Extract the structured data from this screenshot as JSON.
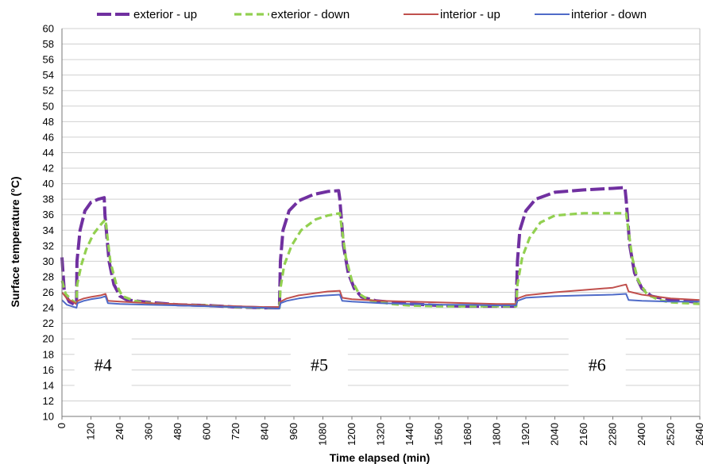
{
  "chart_data": {
    "type": "line",
    "xlabel": "Time elapsed (min)",
    "ylabel": "Surface  temperature (°C)",
    "xlim": [
      0,
      2640
    ],
    "ylim": [
      10,
      60
    ],
    "xticks": [
      0,
      120,
      240,
      360,
      480,
      600,
      720,
      840,
      960,
      1080,
      1200,
      1320,
      1440,
      1560,
      1680,
      1800,
      1920,
      2040,
      2160,
      2280,
      2400,
      2520,
      2640
    ],
    "yticks": [
      10,
      12,
      14,
      16,
      18,
      20,
      22,
      24,
      26,
      28,
      30,
      32,
      34,
      36,
      38,
      40,
      42,
      44,
      46,
      48,
      50,
      52,
      54,
      56,
      58,
      60
    ],
    "grid": "horizontal",
    "legend_position": "top",
    "annotations": [
      {
        "text": "#4",
        "x": 170,
        "y": 16.7
      },
      {
        "text": "#5",
        "x": 1065,
        "y": 16.7
      },
      {
        "text": "#6",
        "x": 2215,
        "y": 16.7
      }
    ],
    "series": [
      {
        "name": "exterior - up",
        "color": "#7030a0",
        "style": "longdash",
        "points": [
          [
            0,
            30.5
          ],
          [
            10,
            26
          ],
          [
            30,
            24.8
          ],
          [
            60,
            24.3
          ],
          [
            62,
            30
          ],
          [
            75,
            34
          ],
          [
            95,
            36.5
          ],
          [
            120,
            37.6
          ],
          [
            150,
            38
          ],
          [
            175,
            38.2
          ],
          [
            178,
            36
          ],
          [
            195,
            30
          ],
          [
            215,
            27
          ],
          [
            240,
            25.5
          ],
          [
            270,
            25
          ],
          [
            360,
            24.7
          ],
          [
            480,
            24.4
          ],
          [
            600,
            24.3
          ],
          [
            720,
            24.1
          ],
          [
            840,
            24
          ],
          [
            900,
            24
          ],
          [
            904,
            30
          ],
          [
            915,
            34
          ],
          [
            940,
            36.5
          ],
          [
            980,
            37.8
          ],
          [
            1040,
            38.6
          ],
          [
            1100,
            39
          ],
          [
            1145,
            39.1
          ],
          [
            1150,
            38
          ],
          [
            1165,
            32
          ],
          [
            1185,
            28.5
          ],
          [
            1210,
            26.5
          ],
          [
            1240,
            25.4
          ],
          [
            1300,
            24.9
          ],
          [
            1440,
            24.5
          ],
          [
            1560,
            24.3
          ],
          [
            1680,
            24.2
          ],
          [
            1800,
            24.2
          ],
          [
            1880,
            24.2
          ],
          [
            1885,
            30
          ],
          [
            1895,
            34
          ],
          [
            1920,
            36.5
          ],
          [
            1960,
            38
          ],
          [
            2040,
            38.9
          ],
          [
            2160,
            39.2
          ],
          [
            2280,
            39.4
          ],
          [
            2330,
            39.5
          ],
          [
            2335,
            38
          ],
          [
            2350,
            32
          ],
          [
            2370,
            28.5
          ],
          [
            2400,
            26.5
          ],
          [
            2440,
            25.5
          ],
          [
            2520,
            25
          ],
          [
            2640,
            24.7
          ]
        ]
      },
      {
        "name": "exterior - down",
        "color": "#92d050",
        "style": "dash",
        "points": [
          [
            0,
            27.5
          ],
          [
            15,
            25.8
          ],
          [
            40,
            25
          ],
          [
            60,
            24.6
          ],
          [
            63,
            27
          ],
          [
            80,
            29.5
          ],
          [
            100,
            31.5
          ],
          [
            130,
            33.5
          ],
          [
            160,
            34.7
          ],
          [
            180,
            35.4
          ],
          [
            185,
            34
          ],
          [
            200,
            30
          ],
          [
            225,
            27
          ],
          [
            250,
            25.5
          ],
          [
            300,
            24.9
          ],
          [
            360,
            24.6
          ],
          [
            480,
            24.4
          ],
          [
            600,
            24.3
          ],
          [
            720,
            24.1
          ],
          [
            840,
            24
          ],
          [
            900,
            24
          ],
          [
            904,
            26.5
          ],
          [
            920,
            29.5
          ],
          [
            950,
            32
          ],
          [
            990,
            34
          ],
          [
            1050,
            35.4
          ],
          [
            1100,
            35.9
          ],
          [
            1150,
            36.2
          ],
          [
            1155,
            35
          ],
          [
            1175,
            30.5
          ],
          [
            1200,
            27.5
          ],
          [
            1230,
            25.8
          ],
          [
            1270,
            25
          ],
          [
            1360,
            24.5
          ],
          [
            1440,
            24.3
          ],
          [
            1560,
            24.2
          ],
          [
            1680,
            24.2
          ],
          [
            1800,
            24.2
          ],
          [
            1880,
            24.2
          ],
          [
            1885,
            27
          ],
          [
            1905,
            30.5
          ],
          [
            1935,
            33
          ],
          [
            1980,
            35
          ],
          [
            2040,
            35.9
          ],
          [
            2160,
            36.2
          ],
          [
            2280,
            36.2
          ],
          [
            2335,
            36.2
          ],
          [
            2340,
            35
          ],
          [
            2360,
            30.5
          ],
          [
            2385,
            27.5
          ],
          [
            2420,
            25.8
          ],
          [
            2470,
            25
          ],
          [
            2520,
            24.7
          ],
          [
            2640,
            24.5
          ]
        ]
      },
      {
        "name": "interior - up",
        "color": "#c0504d",
        "style": "solid",
        "points": [
          [
            0,
            26
          ],
          [
            20,
            25.2
          ],
          [
            60,
            24.5
          ],
          [
            64,
            24.9
          ],
          [
            90,
            25.2
          ],
          [
            120,
            25.4
          ],
          [
            160,
            25.6
          ],
          [
            180,
            25.8
          ],
          [
            190,
            24.9
          ],
          [
            240,
            24.8
          ],
          [
            360,
            24.6
          ],
          [
            480,
            24.5
          ],
          [
            600,
            24.3
          ],
          [
            720,
            24.2
          ],
          [
            840,
            24.1
          ],
          [
            900,
            24.1
          ],
          [
            905,
            24.8
          ],
          [
            930,
            25.2
          ],
          [
            980,
            25.6
          ],
          [
            1050,
            25.9
          ],
          [
            1100,
            26.1
          ],
          [
            1150,
            26.2
          ],
          [
            1160,
            25.3
          ],
          [
            1200,
            25.1
          ],
          [
            1320,
            24.9
          ],
          [
            1440,
            24.8
          ],
          [
            1560,
            24.7
          ],
          [
            1680,
            24.6
          ],
          [
            1800,
            24.5
          ],
          [
            1880,
            24.5
          ],
          [
            1885,
            25.2
          ],
          [
            1920,
            25.6
          ],
          [
            2040,
            26
          ],
          [
            2160,
            26.3
          ],
          [
            2280,
            26.6
          ],
          [
            2320,
            26.9
          ],
          [
            2335,
            27
          ],
          [
            2345,
            26.1
          ],
          [
            2400,
            25.7
          ],
          [
            2520,
            25.2
          ],
          [
            2640,
            25
          ]
        ]
      },
      {
        "name": "interior - down",
        "color": "#4f6bc8",
        "style": "solid",
        "points": [
          [
            0,
            25
          ],
          [
            20,
            24.4
          ],
          [
            60,
            24
          ],
          [
            64,
            24.6
          ],
          [
            90,
            24.9
          ],
          [
            120,
            25.1
          ],
          [
            160,
            25.3
          ],
          [
            180,
            25.5
          ],
          [
            190,
            24.6
          ],
          [
            240,
            24.5
          ],
          [
            360,
            24.4
          ],
          [
            480,
            24.3
          ],
          [
            600,
            24.2
          ],
          [
            720,
            24.1
          ],
          [
            840,
            24
          ],
          [
            900,
            23.9
          ],
          [
            905,
            24.6
          ],
          [
            930,
            24.9
          ],
          [
            980,
            25.2
          ],
          [
            1050,
            25.5
          ],
          [
            1100,
            25.6
          ],
          [
            1150,
            25.7
          ],
          [
            1160,
            24.9
          ],
          [
            1200,
            24.8
          ],
          [
            1320,
            24.6
          ],
          [
            1440,
            24.5
          ],
          [
            1560,
            24.4
          ],
          [
            1680,
            24.4
          ],
          [
            1800,
            24.3
          ],
          [
            1880,
            24.3
          ],
          [
            1885,
            24.9
          ],
          [
            1920,
            25.3
          ],
          [
            2040,
            25.5
          ],
          [
            2160,
            25.6
          ],
          [
            2280,
            25.7
          ],
          [
            2335,
            25.8
          ],
          [
            2345,
            25
          ],
          [
            2400,
            24.9
          ],
          [
            2520,
            24.8
          ],
          [
            2640,
            24.8
          ]
        ]
      }
    ]
  }
}
